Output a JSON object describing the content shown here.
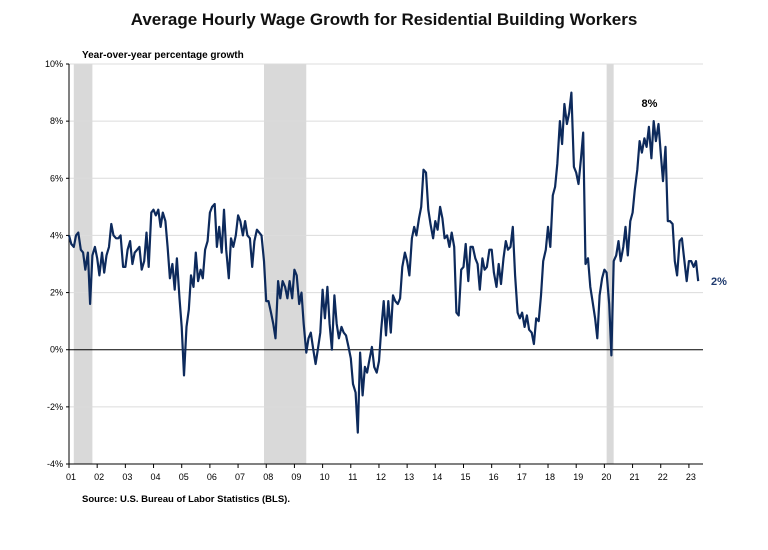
{
  "title": "Average Hourly Wage Growth for Residential Building Workers",
  "source": "Source: U.S. Bureau of Labor Statistics (BLS).",
  "colors": {
    "line": "#0d2a5c",
    "recession": "#d9d9d9",
    "grid": "#dcdcdc",
    "end_label": "#1f3a6e"
  },
  "chart_data": {
    "type": "line",
    "title": "Average Hourly Wage Growth for Residential Building Workers",
    "ylabel": "Year-over-year percentage growth",
    "xlabel": "",
    "ylim": [
      -4,
      10
    ],
    "xlim": [
      2001.0,
      2023.5
    ],
    "y_ticks": [
      -4,
      -2,
      0,
      2,
      4,
      6,
      8,
      10
    ],
    "y_tick_labels": [
      "-4%",
      "-2%",
      "0%",
      "2%",
      "4%",
      "6%",
      "8%",
      "10%"
    ],
    "x_ticks": [
      2001,
      2002,
      2003,
      2004,
      2005,
      2006,
      2007,
      2008,
      2009,
      2010,
      2011,
      2012,
      2013,
      2014,
      2015,
      2016,
      2017,
      2018,
      2019,
      2020,
      2021,
      2022,
      2023
    ],
    "x_tick_labels": [
      "01",
      "02",
      "03",
      "04",
      "05",
      "06",
      "07",
      "08",
      "09",
      "10",
      "11",
      "12",
      "13",
      "14",
      "15",
      "16",
      "17",
      "18",
      "19",
      "20",
      "21",
      "22",
      "23"
    ],
    "grid": true,
    "recessions": [
      [
        2001.17,
        2001.83
      ],
      [
        2007.92,
        2009.42
      ],
      [
        2020.08,
        2020.33
      ]
    ],
    "annotations": [
      {
        "text": "8%",
        "x": 2021.6,
        "y": 8.5
      }
    ],
    "end_label": {
      "text": "2%",
      "value": 2.4
    },
    "series": [
      {
        "name": "Average Hourly Wage Growth",
        "points": [
          [
            2001.0,
            4.0
          ],
          [
            2001.08,
            3.7
          ],
          [
            2001.17,
            3.6
          ],
          [
            2001.25,
            4.0
          ],
          [
            2001.33,
            4.1
          ],
          [
            2001.42,
            3.5
          ],
          [
            2001.5,
            3.4
          ],
          [
            2001.58,
            2.8
          ],
          [
            2001.67,
            3.4
          ],
          [
            2001.75,
            1.6
          ],
          [
            2001.83,
            3.3
          ],
          [
            2001.92,
            3.6
          ],
          [
            2002.0,
            3.2
          ],
          [
            2002.08,
            2.6
          ],
          [
            2002.17,
            3.4
          ],
          [
            2002.25,
            2.7
          ],
          [
            2002.33,
            3.3
          ],
          [
            2002.42,
            3.6
          ],
          [
            2002.5,
            4.4
          ],
          [
            2002.58,
            4.0
          ],
          [
            2002.67,
            3.9
          ],
          [
            2002.75,
            3.9
          ],
          [
            2002.83,
            4.0
          ],
          [
            2002.92,
            2.9
          ],
          [
            2003.0,
            2.9
          ],
          [
            2003.08,
            3.5
          ],
          [
            2003.17,
            3.8
          ],
          [
            2003.25,
            3.0
          ],
          [
            2003.33,
            3.4
          ],
          [
            2003.42,
            3.5
          ],
          [
            2003.5,
            3.6
          ],
          [
            2003.58,
            2.8
          ],
          [
            2003.67,
            3.1
          ],
          [
            2003.75,
            4.1
          ],
          [
            2003.83,
            2.9
          ],
          [
            2003.92,
            4.8
          ],
          [
            2004.0,
            4.9
          ],
          [
            2004.08,
            4.7
          ],
          [
            2004.17,
            4.9
          ],
          [
            2004.25,
            4.3
          ],
          [
            2004.33,
            4.8
          ],
          [
            2004.42,
            4.5
          ],
          [
            2004.5,
            3.6
          ],
          [
            2004.58,
            2.5
          ],
          [
            2004.67,
            3.0
          ],
          [
            2004.75,
            2.1
          ],
          [
            2004.83,
            3.2
          ],
          [
            2004.92,
            1.8
          ],
          [
            2005.0,
            0.8
          ],
          [
            2005.08,
            -0.9
          ],
          [
            2005.17,
            0.8
          ],
          [
            2005.25,
            1.4
          ],
          [
            2005.33,
            2.6
          ],
          [
            2005.42,
            2.2
          ],
          [
            2005.5,
            3.4
          ],
          [
            2005.58,
            2.4
          ],
          [
            2005.67,
            2.8
          ],
          [
            2005.75,
            2.5
          ],
          [
            2005.83,
            3.5
          ],
          [
            2005.92,
            3.8
          ],
          [
            2006.0,
            4.8
          ],
          [
            2006.08,
            5.0
          ],
          [
            2006.17,
            5.1
          ],
          [
            2006.25,
            3.6
          ],
          [
            2006.33,
            4.3
          ],
          [
            2006.42,
            3.4
          ],
          [
            2006.5,
            4.9
          ],
          [
            2006.58,
            3.5
          ],
          [
            2006.67,
            2.5
          ],
          [
            2006.75,
            3.9
          ],
          [
            2006.83,
            3.6
          ],
          [
            2006.92,
            4.0
          ],
          [
            2007.0,
            4.7
          ],
          [
            2007.08,
            4.5
          ],
          [
            2007.17,
            4.0
          ],
          [
            2007.25,
            4.5
          ],
          [
            2007.33,
            4.0
          ],
          [
            2007.42,
            3.9
          ],
          [
            2007.5,
            2.9
          ],
          [
            2007.58,
            3.8
          ],
          [
            2007.67,
            4.2
          ],
          [
            2007.75,
            4.1
          ],
          [
            2007.83,
            4.0
          ],
          [
            2007.92,
            3.1
          ],
          [
            2008.0,
            1.7
          ],
          [
            2008.08,
            1.7
          ],
          [
            2008.17,
            1.3
          ],
          [
            2008.25,
            0.9
          ],
          [
            2008.33,
            0.4
          ],
          [
            2008.42,
            2.4
          ],
          [
            2008.5,
            1.8
          ],
          [
            2008.58,
            2.4
          ],
          [
            2008.67,
            2.2
          ],
          [
            2008.75,
            1.8
          ],
          [
            2008.83,
            2.4
          ],
          [
            2008.92,
            1.8
          ],
          [
            2009.0,
            2.8
          ],
          [
            2009.08,
            2.6
          ],
          [
            2009.17,
            1.6
          ],
          [
            2009.25,
            2.0
          ],
          [
            2009.33,
            0.9
          ],
          [
            2009.42,
            -0.1
          ],
          [
            2009.5,
            0.4
          ],
          [
            2009.58,
            0.6
          ],
          [
            2009.67,
            0.0
          ],
          [
            2009.75,
            -0.5
          ],
          [
            2009.83,
            0.0
          ],
          [
            2009.92,
            0.6
          ],
          [
            2010.0,
            2.1
          ],
          [
            2010.08,
            1.1
          ],
          [
            2010.17,
            2.2
          ],
          [
            2010.25,
            0.9
          ],
          [
            2010.33,
            0.0
          ],
          [
            2010.42,
            1.9
          ],
          [
            2010.5,
            0.9
          ],
          [
            2010.58,
            0.4
          ],
          [
            2010.67,
            0.8
          ],
          [
            2010.75,
            0.6
          ],
          [
            2010.83,
            0.5
          ],
          [
            2010.92,
            0.1
          ],
          [
            2011.0,
            -0.3
          ],
          [
            2011.08,
            -1.2
          ],
          [
            2011.17,
            -1.5
          ],
          [
            2011.25,
            -2.9
          ],
          [
            2011.33,
            -0.1
          ],
          [
            2011.42,
            -1.6
          ],
          [
            2011.5,
            -0.6
          ],
          [
            2011.58,
            -0.8
          ],
          [
            2011.67,
            -0.3
          ],
          [
            2011.75,
            0.1
          ],
          [
            2011.83,
            -0.6
          ],
          [
            2011.92,
            -0.8
          ],
          [
            2012.0,
            -0.4
          ],
          [
            2012.08,
            0.7
          ],
          [
            2012.17,
            1.7
          ],
          [
            2012.25,
            0.5
          ],
          [
            2012.33,
            1.7
          ],
          [
            2012.42,
            0.6
          ],
          [
            2012.5,
            1.9
          ],
          [
            2012.58,
            1.7
          ],
          [
            2012.67,
            1.6
          ],
          [
            2012.75,
            1.8
          ],
          [
            2012.83,
            2.9
          ],
          [
            2012.92,
            3.4
          ],
          [
            2013.0,
            3.1
          ],
          [
            2013.08,
            2.6
          ],
          [
            2013.17,
            3.9
          ],
          [
            2013.25,
            4.3
          ],
          [
            2013.33,
            4.0
          ],
          [
            2013.42,
            4.6
          ],
          [
            2013.5,
            5.0
          ],
          [
            2013.58,
            6.3
          ],
          [
            2013.67,
            6.2
          ],
          [
            2013.75,
            4.9
          ],
          [
            2013.83,
            4.4
          ],
          [
            2013.92,
            3.9
          ],
          [
            2014.0,
            4.5
          ],
          [
            2014.08,
            4.2
          ],
          [
            2014.17,
            5.0
          ],
          [
            2014.25,
            4.6
          ],
          [
            2014.33,
            3.9
          ],
          [
            2014.42,
            4.0
          ],
          [
            2014.5,
            3.6
          ],
          [
            2014.58,
            4.1
          ],
          [
            2014.67,
            3.6
          ],
          [
            2014.75,
            1.3
          ],
          [
            2014.83,
            1.2
          ],
          [
            2014.92,
            2.8
          ],
          [
            2015.0,
            2.9
          ],
          [
            2015.08,
            3.7
          ],
          [
            2015.17,
            2.4
          ],
          [
            2015.25,
            3.6
          ],
          [
            2015.33,
            3.6
          ],
          [
            2015.42,
            3.2
          ],
          [
            2015.5,
            3.0
          ],
          [
            2015.58,
            2.1
          ],
          [
            2015.67,
            3.2
          ],
          [
            2015.75,
            2.8
          ],
          [
            2015.83,
            2.9
          ],
          [
            2015.92,
            3.5
          ],
          [
            2016.0,
            3.5
          ],
          [
            2016.08,
            2.7
          ],
          [
            2016.17,
            2.2
          ],
          [
            2016.25,
            3.0
          ],
          [
            2016.33,
            2.3
          ],
          [
            2016.42,
            3.2
          ],
          [
            2016.5,
            3.8
          ],
          [
            2016.58,
            3.5
          ],
          [
            2016.67,
            3.6
          ],
          [
            2016.75,
            4.3
          ],
          [
            2016.83,
            2.6
          ],
          [
            2016.92,
            1.3
          ],
          [
            2017.0,
            1.1
          ],
          [
            2017.08,
            1.3
          ],
          [
            2017.17,
            0.8
          ],
          [
            2017.25,
            1.2
          ],
          [
            2017.33,
            0.7
          ],
          [
            2017.42,
            0.6
          ],
          [
            2017.5,
            0.2
          ],
          [
            2017.58,
            1.1
          ],
          [
            2017.67,
            1.0
          ],
          [
            2017.75,
            1.9
          ],
          [
            2017.83,
            3.1
          ],
          [
            2017.92,
            3.5
          ],
          [
            2018.0,
            4.3
          ],
          [
            2018.08,
            3.6
          ],
          [
            2018.17,
            5.4
          ],
          [
            2018.25,
            5.7
          ],
          [
            2018.33,
            6.5
          ],
          [
            2018.42,
            8.0
          ],
          [
            2018.5,
            7.2
          ],
          [
            2018.58,
            8.6
          ],
          [
            2018.67,
            7.9
          ],
          [
            2018.75,
            8.3
          ],
          [
            2018.83,
            9.0
          ],
          [
            2018.92,
            6.4
          ],
          [
            2019.0,
            6.2
          ],
          [
            2019.08,
            5.8
          ],
          [
            2019.17,
            6.7
          ],
          [
            2019.25,
            7.6
          ],
          [
            2019.33,
            3.0
          ],
          [
            2019.42,
            3.2
          ],
          [
            2019.5,
            2.2
          ],
          [
            2019.58,
            1.7
          ],
          [
            2019.67,
            1.1
          ],
          [
            2019.75,
            0.4
          ],
          [
            2019.83,
            1.9
          ],
          [
            2019.92,
            2.5
          ],
          [
            2020.0,
            2.8
          ],
          [
            2020.08,
            2.7
          ],
          [
            2020.17,
            1.6
          ],
          [
            2020.25,
            -0.2
          ],
          [
            2020.33,
            3.1
          ],
          [
            2020.42,
            3.3
          ],
          [
            2020.5,
            3.8
          ],
          [
            2020.58,
            3.1
          ],
          [
            2020.67,
            3.6
          ],
          [
            2020.75,
            4.3
          ],
          [
            2020.83,
            3.3
          ],
          [
            2020.92,
            4.5
          ],
          [
            2021.0,
            4.8
          ],
          [
            2021.08,
            5.6
          ],
          [
            2021.17,
            6.3
          ],
          [
            2021.25,
            7.3
          ],
          [
            2021.33,
            6.9
          ],
          [
            2021.42,
            7.4
          ],
          [
            2021.5,
            7.1
          ],
          [
            2021.58,
            7.8
          ],
          [
            2021.67,
            6.7
          ],
          [
            2021.75,
            8.0
          ],
          [
            2021.83,
            7.3
          ],
          [
            2021.92,
            7.9
          ],
          [
            2022.0,
            6.9
          ],
          [
            2022.08,
            5.9
          ],
          [
            2022.17,
            7.1
          ],
          [
            2022.25,
            4.5
          ],
          [
            2022.33,
            4.5
          ],
          [
            2022.42,
            4.4
          ],
          [
            2022.5,
            3.1
          ],
          [
            2022.58,
            2.6
          ],
          [
            2022.67,
            3.8
          ],
          [
            2022.75,
            3.9
          ],
          [
            2022.83,
            3.2
          ],
          [
            2022.92,
            2.4
          ],
          [
            2023.0,
            3.1
          ],
          [
            2023.08,
            3.1
          ],
          [
            2023.17,
            2.9
          ],
          [
            2023.25,
            3.1
          ],
          [
            2023.33,
            2.4
          ]
        ]
      }
    ]
  }
}
